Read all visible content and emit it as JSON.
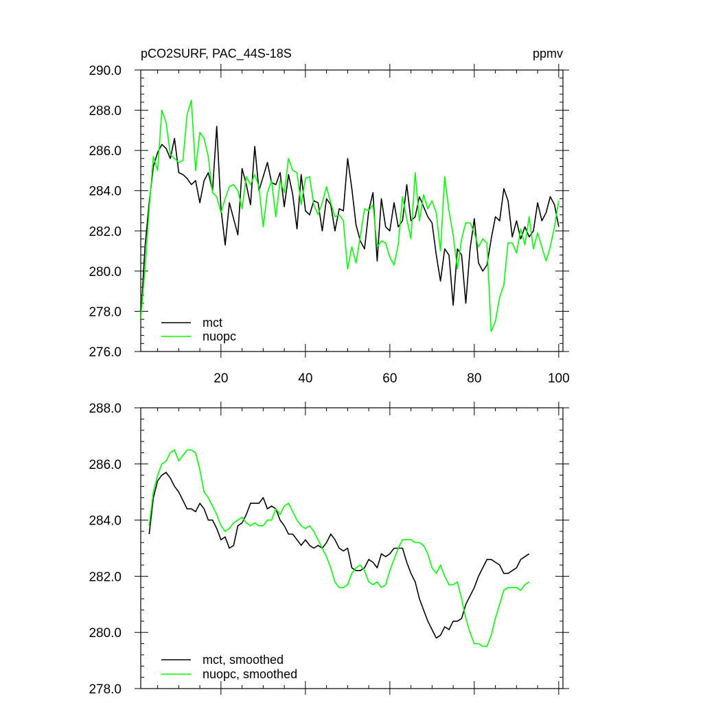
{
  "chart_data": [
    {
      "type": "line",
      "title": "pCO2SURF, PAC_44S-18S",
      "units": "ppmv",
      "xlim": [
        1,
        101
      ],
      "ylim": [
        276.0,
        290.0
      ],
      "x_ticks": [
        20,
        40,
        60,
        80,
        100
      ],
      "y_ticks": [
        276.0,
        278.0,
        280.0,
        282.0,
        284.0,
        286.0,
        288.0,
        290.0
      ],
      "x_tick_labels": [
        "20",
        "40",
        "60",
        "80",
        "100"
      ],
      "y_tick_labels": [
        "276.0",
        "278.0",
        "280.0",
        "282.0",
        "284.0",
        "286.0",
        "288.0",
        "290.0"
      ],
      "legend_position": "bottom-left",
      "series": [
        {
          "name": "mct",
          "color": "#000000",
          "x_start": 1,
          "values": [
            277.6,
            281.2,
            283.4,
            285.2,
            285.9,
            286.3,
            286.1,
            285.6,
            286.6,
            284.9,
            284.8,
            284.6,
            284.3,
            284.5,
            283.4,
            284.5,
            284.9,
            284.0,
            287.2,
            283.1,
            281.3,
            283.4,
            282.6,
            281.8,
            285.1,
            284.3,
            283.3,
            286.2,
            284.0,
            284.7,
            285.4,
            284.4,
            284.3,
            284.9,
            283.2,
            284.8,
            283.8,
            282.1,
            284.8,
            283.0,
            282.8,
            283.5,
            283.4,
            282.0,
            283.6,
            283.3,
            282.0,
            283.1,
            283.0,
            285.6,
            284.1,
            282.3,
            281.5,
            281.1,
            283.0,
            283.9,
            280.5,
            283.6,
            282.2,
            282.0,
            283.4,
            282.2,
            282.5,
            284.3,
            282.5,
            282.7,
            283.7,
            283.2,
            282.7,
            282.4,
            280.8,
            279.5,
            281.1,
            280.8,
            278.3,
            281.1,
            280.8,
            278.4,
            281.1,
            282.6,
            280.4,
            280.0,
            280.3,
            281.6,
            282.7,
            282.5,
            284.1,
            283.5,
            281.7,
            282.5,
            281.6,
            282.2,
            281.7,
            282.0,
            283.4,
            282.5,
            282.9,
            283.7,
            283.3,
            282.2
          ]
        },
        {
          "name": "nuopc",
          "color": "#00ff00",
          "x_start": 1,
          "values": [
            277.6,
            280.1,
            283.1,
            285.7,
            285.0,
            288.0,
            287.4,
            285.8,
            285.6,
            285.4,
            285.5,
            287.8,
            288.5,
            285.0,
            286.9,
            286.6,
            285.7,
            283.9,
            283.7,
            282.9,
            283.6,
            284.2,
            284.3,
            284.0,
            283.1,
            284.7,
            284.3,
            284.8,
            284.2,
            282.2,
            283.9,
            284.5,
            282.7,
            284.5,
            283.9,
            285.6,
            285.0,
            284.9,
            283.3,
            284.6,
            284.7,
            283.3,
            282.8,
            283.4,
            284.2,
            283.4,
            282.7,
            282.8,
            282.5,
            280.1,
            281.2,
            280.4,
            281.7,
            283.1,
            283.0,
            283.3,
            281.2,
            281.5,
            281.4,
            280.7,
            280.3,
            281.3,
            283.7,
            282.6,
            281.6,
            284.9,
            282.5,
            283.8,
            283.1,
            283.5,
            282.9,
            281.0,
            284.7,
            283.0,
            281.8,
            280.1,
            281.6,
            282.4,
            282.4,
            281.9,
            281.2,
            281.6,
            281.4,
            277.0,
            277.5,
            278.7,
            279.3,
            281.4,
            281.4,
            280.9,
            282.1,
            281.3,
            282.7,
            281.1,
            281.9,
            281.2,
            280.5,
            281.2,
            282.2,
            283.5
          ]
        }
      ]
    },
    {
      "type": "line",
      "title": "",
      "units": "",
      "xlim": [
        1,
        101
      ],
      "ylim": [
        278.0,
        288.0
      ],
      "x_ticks": [
        20,
        40,
        60,
        80,
        100
      ],
      "y_ticks": [
        278.0,
        280.0,
        282.0,
        284.0,
        286.0,
        288.0
      ],
      "y_tick_labels": [
        "278.0",
        "280.0",
        "282.0",
        "284.0",
        "286.0",
        "288.0"
      ],
      "legend_position": "bottom-left",
      "series": [
        {
          "name": "mct, smoothed",
          "color": "#000000",
          "x_start": 3,
          "values": [
            283.5,
            284.8,
            285.4,
            285.6,
            285.7,
            285.5,
            285.2,
            285.0,
            284.7,
            284.4,
            284.4,
            284.3,
            284.6,
            284.4,
            284.0,
            284.0,
            283.7,
            283.3,
            283.4,
            283.0,
            283.1,
            283.8,
            283.9,
            284.2,
            284.6,
            284.6,
            284.6,
            284.8,
            284.4,
            284.5,
            284.4,
            284.0,
            283.8,
            283.5,
            283.5,
            283.3,
            283.1,
            283.3,
            283.1,
            283.0,
            283.1,
            283.0,
            283.2,
            283.5,
            283.3,
            283.0,
            282.9,
            283.0,
            282.3,
            282.2,
            282.2,
            282.3,
            282.6,
            282.5,
            282.3,
            282.8,
            282.7,
            282.8,
            283.0,
            283.0,
            283.0,
            282.5,
            282.1,
            281.8,
            281.2,
            280.8,
            280.4,
            280.1,
            279.8,
            279.9,
            280.2,
            280.1,
            280.4,
            280.4,
            280.5,
            281.0,
            281.3,
            281.6,
            282.0,
            282.3,
            282.6,
            282.6,
            282.5,
            282.4,
            282.1,
            282.1,
            282.2,
            282.3,
            282.6,
            282.7,
            282.8
          ]
        },
        {
          "name": "nuopc, smoothed",
          "color": "#00ff00",
          "x_start": 3,
          "values": [
            283.8,
            285.0,
            285.6,
            286.0,
            286.1,
            286.4,
            286.5,
            286.1,
            286.3,
            286.5,
            286.5,
            286.4,
            285.8,
            285.0,
            284.8,
            284.5,
            284.2,
            283.8,
            283.6,
            283.7,
            283.9,
            284.0,
            284.1,
            283.9,
            283.8,
            283.9,
            283.8,
            283.8,
            284.0,
            284.0,
            284.4,
            284.2,
            284.5,
            284.6,
            284.3,
            284.0,
            283.8,
            283.7,
            283.8,
            283.6,
            283.3,
            283.0,
            282.7,
            282.3,
            281.8,
            281.6,
            281.6,
            281.7,
            282.1,
            282.3,
            282.4,
            282.2,
            281.8,
            281.7,
            281.8,
            281.6,
            281.7,
            282.2,
            282.6,
            283.0,
            283.3,
            283.3,
            283.3,
            283.2,
            283.2,
            283.1,
            282.8,
            282.3,
            282.1,
            282.4,
            282.0,
            281.7,
            281.7,
            281.8,
            281.2,
            280.5,
            280.0,
            279.6,
            279.6,
            279.5,
            279.5,
            279.9,
            280.5,
            281.0,
            281.5,
            281.6,
            281.6,
            281.6,
            281.5,
            281.7,
            281.8
          ]
        }
      ]
    }
  ]
}
